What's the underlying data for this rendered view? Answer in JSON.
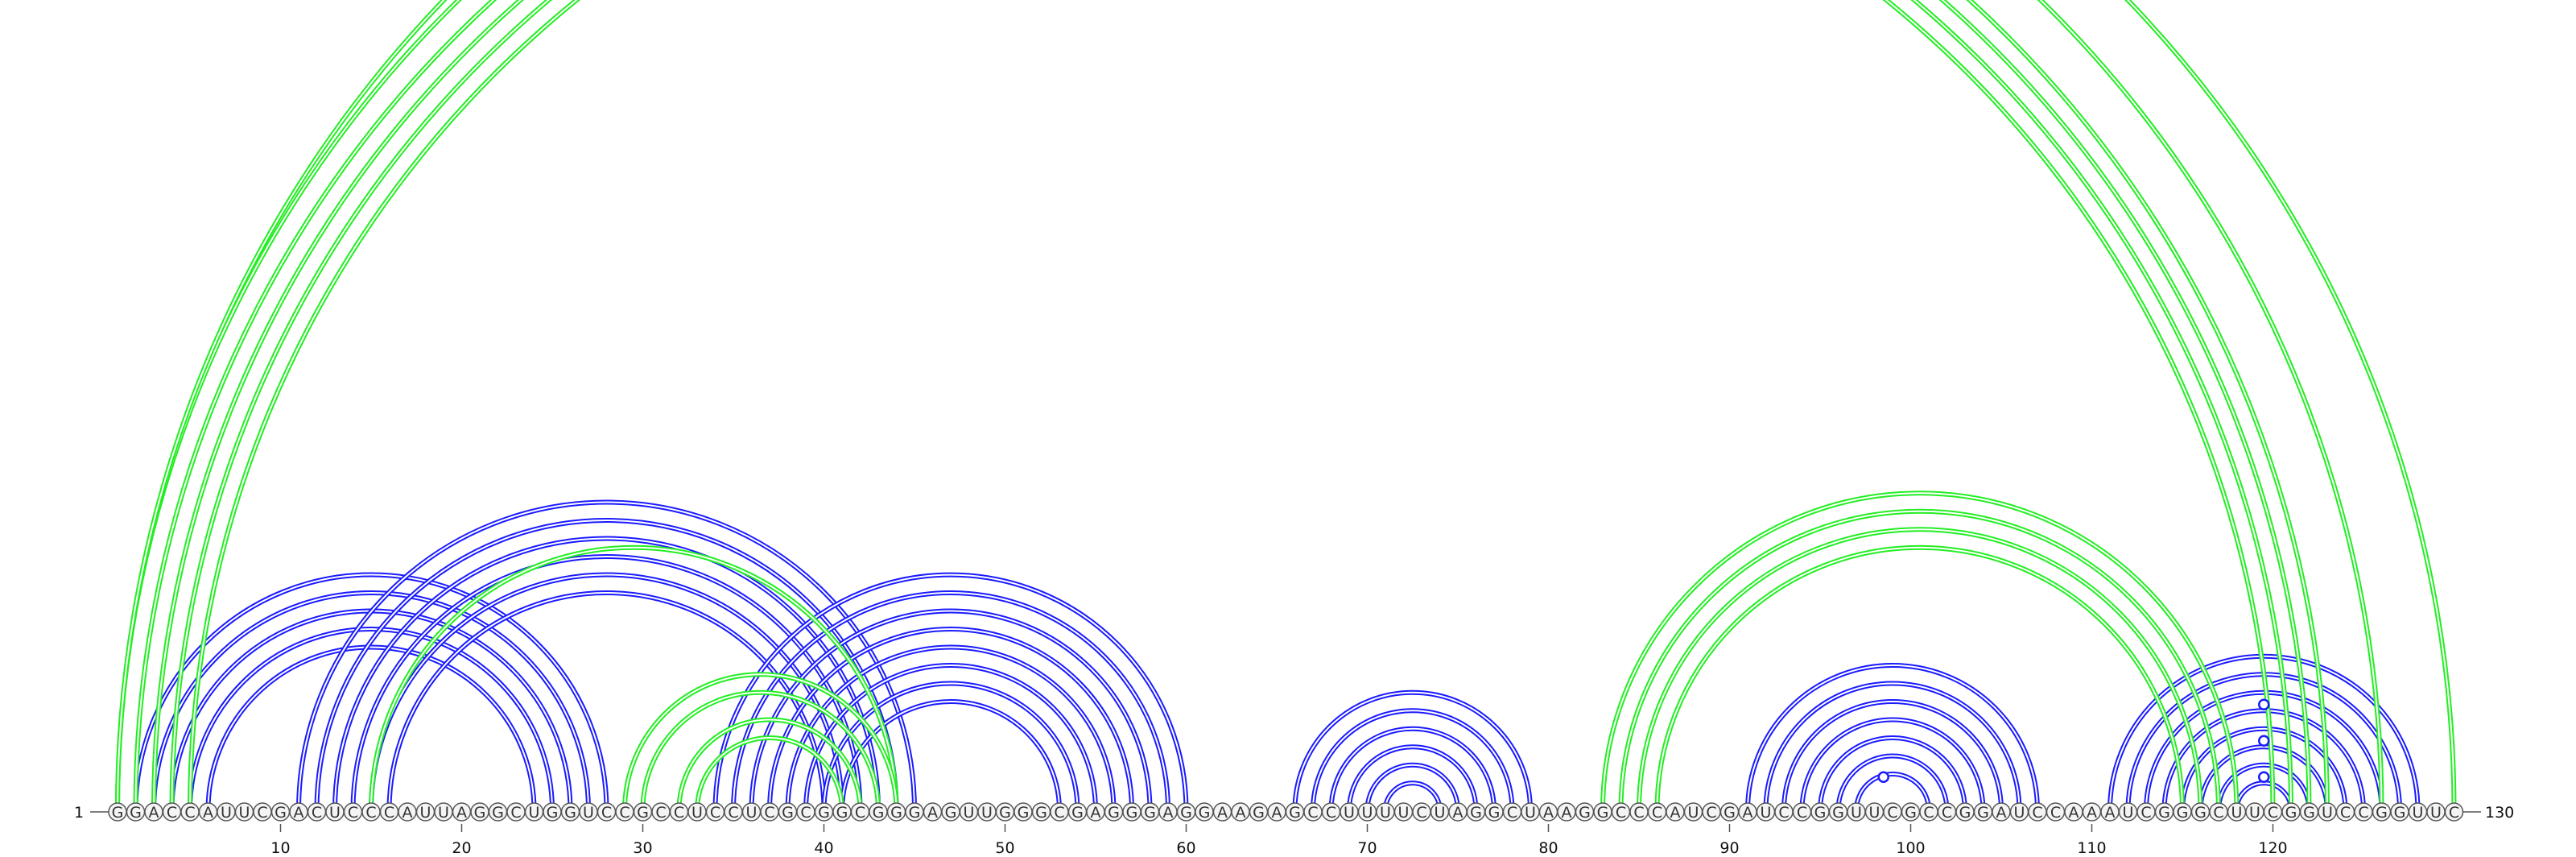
{
  "diagram": {
    "sequence": "GGACCAUUCGACUCCCAUUAGGCUGGUCCGCCUCCUCGCGGCGGGAGUUGGGCGAGGGAGGAAGAGCCUUUUCUAGGCUAAGGCCCAUCGAUCCGGUUCGCCGGAUCCAAAUCGGGCUUCGGUCCGGUUC",
    "length": 130,
    "start_label": "1",
    "end_label": "130",
    "tick_labels": [
      "10",
      "20",
      "30",
      "40",
      "50",
      "60",
      "70",
      "80",
      "90",
      "100",
      "110",
      "120"
    ],
    "colors": {
      "blue": "#1a1aff",
      "green": "#22ee22"
    },
    "stems": [
      {
        "color": "blue",
        "i": 2,
        "j": 28,
        "n": 5
      },
      {
        "color": "blue",
        "i": 11,
        "j": 45,
        "n": 6
      },
      {
        "color": "blue",
        "i": 34,
        "j": 60,
        "n": 8
      },
      {
        "color": "blue",
        "i": 66,
        "j": 79,
        "n": 6
      },
      {
        "color": "blue",
        "i": 91,
        "j": 107,
        "n": 7
      },
      {
        "color": "blue",
        "i": 111,
        "j": 128,
        "n": 8
      },
      {
        "color": "green",
        "i": 1,
        "j": 126,
        "n": 1
      },
      {
        "color": "green",
        "i": 2,
        "j": 123,
        "n": 4
      },
      {
        "color": "green",
        "i": 15,
        "j": 44,
        "n": 1
      },
      {
        "color": "green",
        "i": 29,
        "j": 44,
        "n": 2
      },
      {
        "color": "green",
        "i": 32,
        "j": 42,
        "n": 2
      },
      {
        "color": "green",
        "i": 83,
        "j": 118,
        "n": 4
      },
      {
        "color": "green",
        "i": 1,
        "j": 130,
        "n": 1
      }
    ],
    "hairpin_markers": [
      {
        "i": 98,
        "j": 99,
        "color": "blue"
      },
      {
        "i": 119,
        "j": 120,
        "color": "blue"
      },
      {
        "i": 119,
        "j": 120,
        "color": "blue",
        "level": 3
      },
      {
        "i": 119,
        "j": 120,
        "color": "blue",
        "level": 5
      }
    ]
  }
}
